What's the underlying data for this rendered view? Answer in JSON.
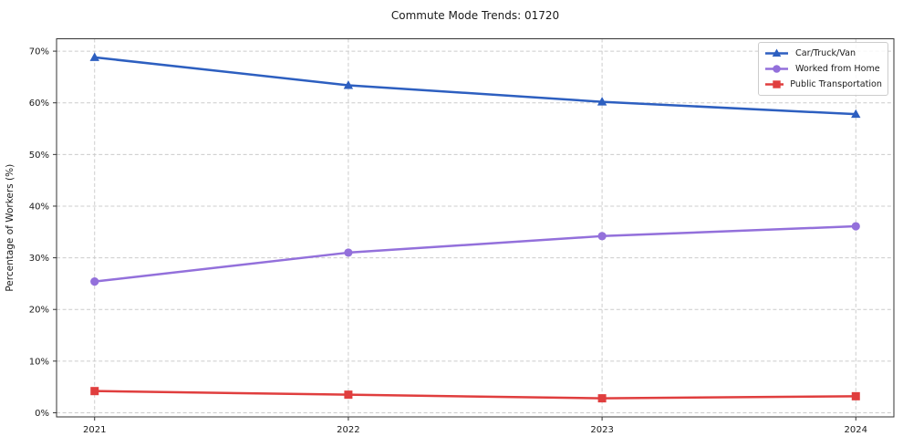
{
  "title": "Commute Mode Trends: 01720",
  "axes": {
    "ylabel": "Percentage of Workers (%)",
    "y_tick_labels": [
      "0%",
      "10%",
      "20%",
      "30%",
      "40%",
      "50%",
      "60%",
      "70%"
    ],
    "x_tick_labels": [
      "2021",
      "2022",
      "2023",
      "2024"
    ]
  },
  "chart_data": {
    "type": "line",
    "title": "Commute Mode Trends: 01720",
    "xlabel": "",
    "ylabel": "Percentage of Workers (%)",
    "x": [
      2021,
      2022,
      2023,
      2024
    ],
    "categories": [
      "2021",
      "2022",
      "2023",
      "2024"
    ],
    "series": [
      {
        "name": "Car/Truck/Van",
        "values": [
          68.8,
          63.4,
          60.2,
          57.8
        ],
        "color": "#2d5fc0",
        "marker": "triangle"
      },
      {
        "name": "Worked from Home",
        "values": [
          25.4,
          31.0,
          34.2,
          36.1
        ],
        "color": "#9370db",
        "marker": "circle"
      },
      {
        "name": "Public Transportation",
        "values": [
          4.2,
          3.5,
          2.8,
          3.2
        ],
        "color": "#e03e3e",
        "marker": "square"
      }
    ],
    "yticks": [
      0,
      10,
      20,
      30,
      40,
      50,
      60,
      70
    ],
    "ylim": [
      -0.8,
      72.4
    ],
    "xlim": [
      2020.85,
      2024.15
    ],
    "grid": true,
    "grid_style": "dashed",
    "grid_color": "#cccccc",
    "legend_position": "upper right",
    "text_color": "#1a1a1a",
    "spine_color": "#333333"
  }
}
